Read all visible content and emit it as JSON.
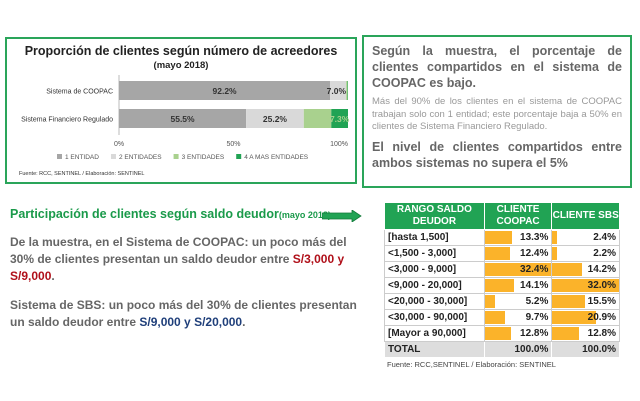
{
  "chart_data": {
    "type": "bar",
    "orientation": "horizontal-stacked-100",
    "title": "Proporción de clientes según número de acreedores",
    "subtitle": "(mayo 2018)",
    "categories": [
      "Sistema de COOPAC",
      "Sistema Financiero Regulado"
    ],
    "series": [
      {
        "name": "1 ENTIDAD",
        "color": "#a6a6a6",
        "values": [
          92.2,
          55.5
        ],
        "labels": [
          "92.2%",
          "55.5%"
        ]
      },
      {
        "name": "2 ENTIDADES",
        "color": "#d9d9d9",
        "values": [
          7.0,
          25.2
        ],
        "labels": [
          "7.0%",
          "25.2%"
        ]
      },
      {
        "name": "3 ENTIDADES",
        "color": "#a9d18e",
        "values": [
          0.6,
          12.0
        ],
        "labels": [
          "",
          ""
        ]
      },
      {
        "name": "4 A MAS ENTIDADES",
        "color": "#21a354",
        "values": [
          0.2,
          7.3
        ],
        "labels": [
          "",
          "7.3%"
        ]
      }
    ],
    "xticks": [
      "0%",
      "50%",
      "100%"
    ],
    "xlim": [
      0,
      100
    ],
    "legend": "bottom",
    "source": "Fuente: RCC, SENTINEL / Elaboración: SENTINEL"
  },
  "summary": {
    "headline": "Según la muestra, el porcentaje de clientes compartidos en el sistema de COOPAC es bajo.",
    "detail": "Más del 90% de los clientes en el sistema de COOPAC trabajan solo con 1 entidad; este porcentaje baja a 50% en clientes de Sistema Financiero Regulado.",
    "conclusion": "El nivel de clientes compartidos entre ambos sistemas no supera el 5%"
  },
  "section2": {
    "title": "Participación de clientes según saldo deudor",
    "title_date": "(mayo 2018)",
    "p1_text": "De la muestra, en el Sistema de COOPAC: un poco más del 30% de clientes presentan un saldo deudor entre ",
    "p1_highlight": "S/3,000 y S/9,000",
    "p2_text": "Sistema de SBS: un poco más del 30% de clientes presentan un saldo deudor entre ",
    "p2_highlight": "S/9,000 y S/20,000",
    "period": "."
  },
  "table": {
    "headers": [
      "RANGO SALDO DEUDOR",
      "CLIENTE COOPAC",
      "CLIENTE SBS"
    ],
    "rows": [
      {
        "range": "[hasta 1,500]",
        "coopac": 13.3,
        "sbs": 2.4,
        "coopac_label": "13.3%",
        "sbs_label": "2.4%"
      },
      {
        "range": "<1,500 - 3,000]",
        "coopac": 12.4,
        "sbs": 2.2,
        "coopac_label": "12.4%",
        "sbs_label": "2.2%"
      },
      {
        "range": "<3,000 - 9,000]",
        "coopac": 32.4,
        "sbs": 14.2,
        "coopac_label": "32.4%",
        "sbs_label": "14.2%"
      },
      {
        "range": "<9,000 - 20,000]",
        "coopac": 14.1,
        "sbs": 32.0,
        "coopac_label": "14.1%",
        "sbs_label": "32.0%"
      },
      {
        "range": "<20,000 - 30,000]",
        "coopac": 5.2,
        "sbs": 15.5,
        "coopac_label": "5.2%",
        "sbs_label": "15.5%"
      },
      {
        "range": "<30,000 - 90,000]",
        "coopac": 9.7,
        "sbs": 20.9,
        "coopac_label": "9.7%",
        "sbs_label": "20.9%"
      },
      {
        "range": "[Mayor a 90,000]",
        "coopac": 12.8,
        "sbs": 12.8,
        "coopac_label": "12.8%",
        "sbs_label": "12.8%"
      }
    ],
    "total": {
      "label": "TOTAL",
      "coopac": "100.0%",
      "sbs": "100.0%"
    },
    "bar_color": "#fbb32a",
    "source": "Fuente: RCC,SENTINEL / Elaboración: SENTINEL"
  }
}
